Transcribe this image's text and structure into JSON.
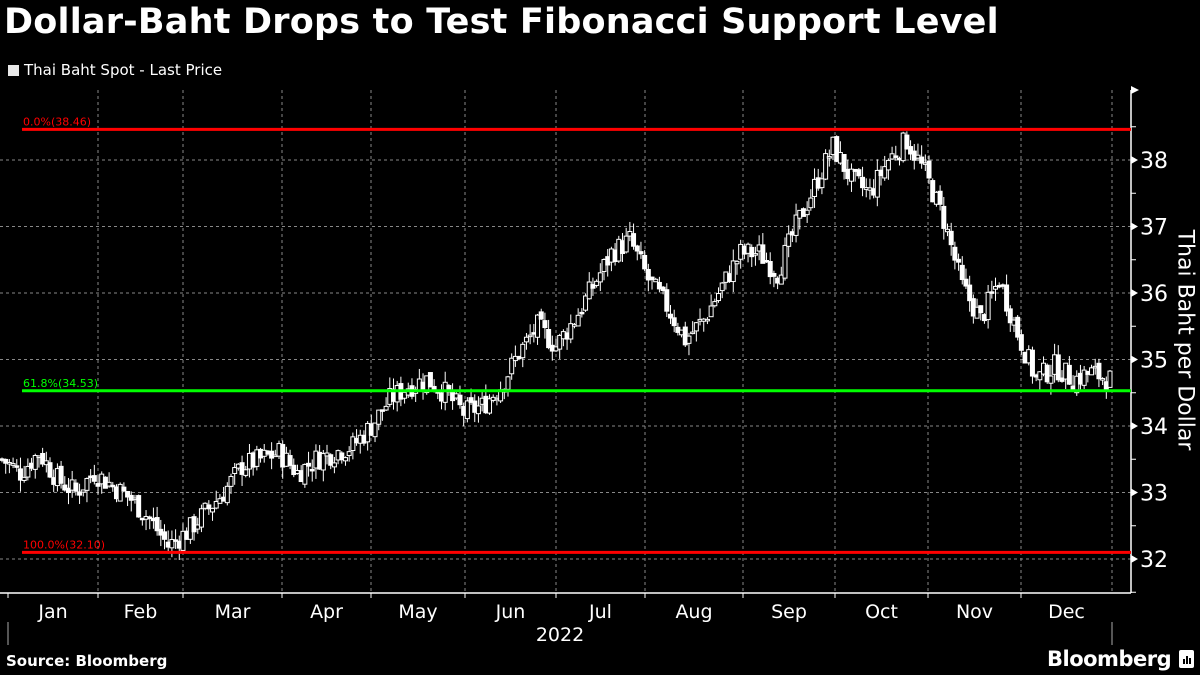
{
  "header": {
    "title": "Dollar-Baht Drops to Test Fibonacci Support Level",
    "legend_label": "Thai Baht Spot - Last Price"
  },
  "axis": {
    "ylabel": "Thai Baht per Dollar",
    "year_label": "2022"
  },
  "footer": {
    "source": "Source: Bloomberg",
    "brand": "Bloomberg"
  },
  "colors": {
    "background": "#000000",
    "candles": "#ffffff",
    "fib_0": "#ff0000",
    "fib_618": "#00ff00",
    "fib_100": "#ff0000",
    "grid": "#888888"
  },
  "chart_data": {
    "type": "candlestick",
    "title": "Dollar-Baht Drops to Test Fibonacci Support Level",
    "series_name": "Thai Baht Spot - Last Price",
    "xlabel": "2022",
    "ylabel": "Thai Baht per Dollar",
    "ylim": [
      31.55,
      38.95
    ],
    "yticks": [
      32,
      33,
      34,
      35,
      36,
      37,
      38
    ],
    "categories": [
      "Jan",
      "Feb",
      "Mar",
      "Apr",
      "May",
      "Jun",
      "Jul",
      "Aug",
      "Sep",
      "Oct",
      "Nov",
      "Dec"
    ],
    "grid": true,
    "fibonacci_levels": [
      {
        "label": "0.0%(38.46)",
        "value": 38.46,
        "color": "#ff0000"
      },
      {
        "label": "61.8%(34.53)",
        "value": 34.53,
        "color": "#00ff00"
      },
      {
        "label": "100.0%(32.10)",
        "value": 32.1,
        "color": "#ff0000"
      }
    ],
    "weekly_close_approx": [
      {
        "month": "Jan",
        "values": [
          33.5,
          33.3,
          33.6,
          33.2,
          33.0
        ]
      },
      {
        "month": "Feb",
        "values": [
          33.3,
          33.1,
          32.9,
          32.6,
          32.2
        ]
      },
      {
        "month": "Mar",
        "values": [
          32.4,
          32.7,
          33.0,
          33.4,
          33.5,
          33.6
        ]
      },
      {
        "month": "Apr",
        "values": [
          33.3,
          33.5,
          33.6,
          33.7,
          34.0
        ]
      },
      {
        "month": "May",
        "values": [
          34.4,
          34.6,
          34.7,
          34.5,
          34.2
        ]
      },
      {
        "month": "Jun",
        "values": [
          34.3,
          34.6,
          35.1,
          35.5,
          35.2
        ]
      },
      {
        "month": "Jul",
        "values": [
          35.6,
          36.1,
          36.6,
          36.8,
          36.2
        ]
      },
      {
        "month": "Aug",
        "values": [
          35.8,
          35.3,
          35.6,
          36.1,
          36.6
        ]
      },
      {
        "month": "Sep",
        "values": [
          36.6,
          36.3,
          37.0,
          37.6,
          38.2
        ]
      },
      {
        "month": "Oct",
        "values": [
          37.7,
          37.5,
          38.0,
          38.3,
          37.8
        ]
      },
      {
        "month": "Nov",
        "values": [
          37.1,
          36.1,
          35.6,
          36.2,
          35.4
        ]
      },
      {
        "month": "Dec",
        "values": [
          34.7,
          34.9,
          34.7,
          34.8,
          34.7
        ]
      }
    ]
  }
}
